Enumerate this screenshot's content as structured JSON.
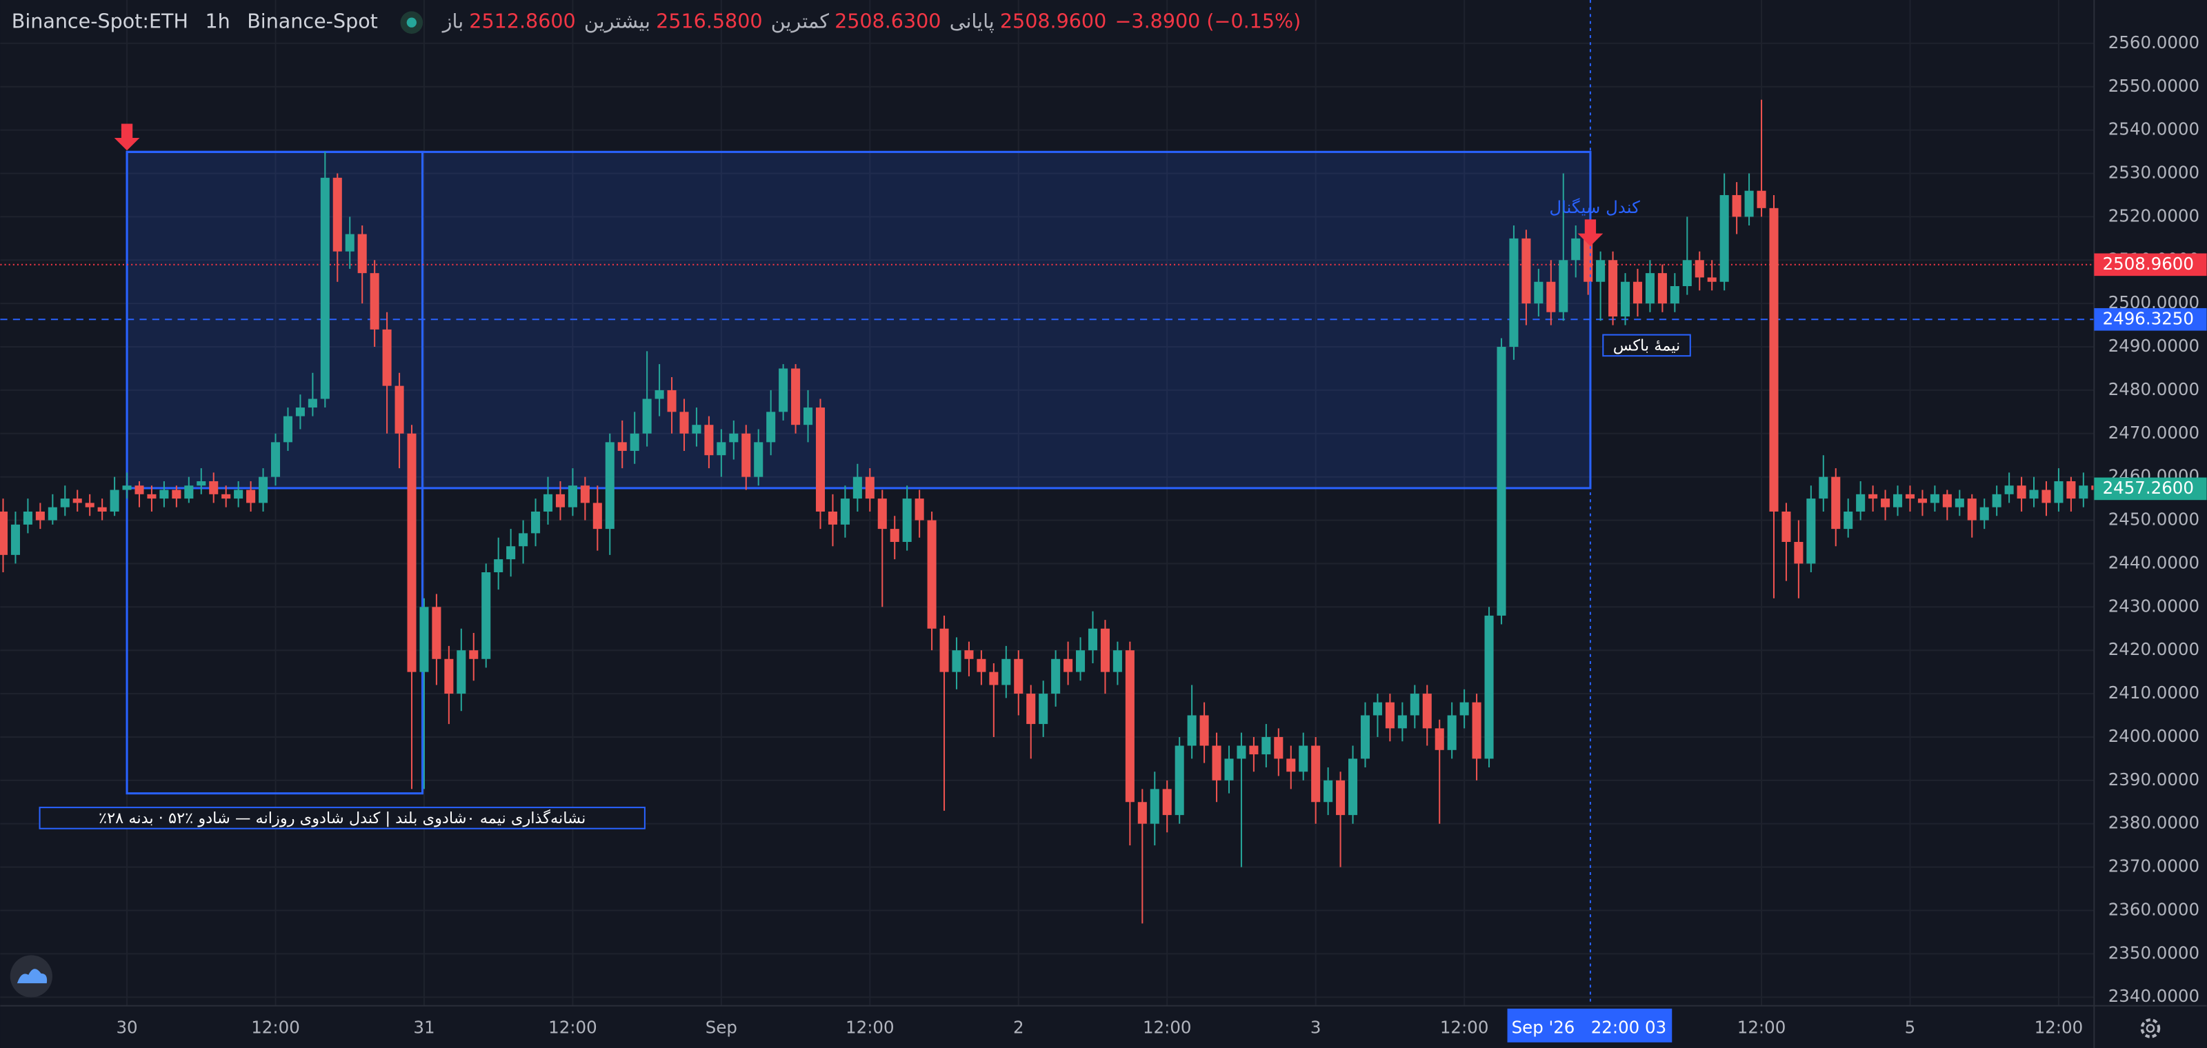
{
  "header": {
    "symbol": "Binance-Spot:ETH",
    "interval": "1h",
    "exchange": "Binance-Spot",
    "ohlc": [
      {
        "label": "باز",
        "value": "2512.8600"
      },
      {
        "label": "بیشترین",
        "value": "2516.5800"
      },
      {
        "label": "کمترین",
        "value": "2508.6300"
      },
      {
        "label": "پایانی",
        "value": "2508.9600"
      }
    ],
    "change": "−3.8900 (−0.15%)"
  },
  "annotations": {
    "signal": "کندل سیگنال",
    "half_box": "نیمهٔ باکس",
    "note": "٪نشانه‌گذاری نیمه ۰شادوی بلند | کندل شادوی روزانه — شادو ٪۵۲ · بدنه ۲۸",
    "crosshair_time": "Sep '26   22:00 03"
  },
  "chart_data": {
    "type": "candlestick",
    "up_color": "#26a69a",
    "down_color": "#ef5350",
    "grid": true,
    "ylim": [
      2338,
      2570
    ],
    "yticks": [
      {
        "value": 2340,
        "label": "2340.0000"
      },
      {
        "value": 2350,
        "label": "2350.0000"
      },
      {
        "value": 2360,
        "label": "2360.0000"
      },
      {
        "value": 2370,
        "label": "2370.0000"
      },
      {
        "value": 2380,
        "label": "2380.0000"
      },
      {
        "value": 2390,
        "label": "2390.0000"
      },
      {
        "value": 2400,
        "label": "2400.0000"
      },
      {
        "value": 2410,
        "label": "2410.0000"
      },
      {
        "value": 2420,
        "label": "2420.0000"
      },
      {
        "value": 2430,
        "label": "2430.0000"
      },
      {
        "value": 2440,
        "label": "2440.0000"
      },
      {
        "value": 2450,
        "label": "2450.0000"
      },
      {
        "value": 2460,
        "label": "2460.0000"
      },
      {
        "value": 2470,
        "label": "2470.0000"
      },
      {
        "value": 2480,
        "label": "2480.0000"
      },
      {
        "value": 2490,
        "label": "2490.0000"
      },
      {
        "value": 2500,
        "label": "2500.0000"
      },
      {
        "value": 2510,
        "label": "2510.0000"
      },
      {
        "value": 2520,
        "label": "2520.0000"
      },
      {
        "value": 2530,
        "label": "2530.0000"
      },
      {
        "value": 2540,
        "label": "2540.0000"
      },
      {
        "value": 2550,
        "label": "2550.0000"
      },
      {
        "value": 2560,
        "label": "2560.0000"
      }
    ],
    "xticks": [
      {
        "value": 10,
        "label": "30"
      },
      {
        "value": 22,
        "label": "12:00"
      },
      {
        "value": 34,
        "label": "31"
      },
      {
        "value": 46,
        "label": "12:00"
      },
      {
        "value": 58,
        "label": "Sep"
      },
      {
        "value": 70,
        "label": "12:00"
      },
      {
        "value": 82,
        "label": "2"
      },
      {
        "value": 94,
        "label": "12:00"
      },
      {
        "value": 106,
        "label": "3"
      },
      {
        "value": 118,
        "label": "12:00"
      },
      {
        "value": 142,
        "label": "12:00"
      },
      {
        "value": 154,
        "label": "5"
      },
      {
        "value": 166,
        "label": "12:00"
      }
    ],
    "price_lines": [
      {
        "value": 2508.96,
        "label": "2508.9600",
        "color": "#f23645",
        "style": "dotted"
      },
      {
        "value": 2496.325,
        "label": "2496.3250",
        "color": "#2962ff",
        "style": "dashed"
      },
      {
        "value": 2457.26,
        "label": "2457.2600",
        "color": "#22ab94",
        "style": "none"
      }
    ],
    "ohlc": [
      [
        2452,
        2455,
        2438,
        2442
      ],
      [
        2442,
        2452,
        2440,
        2449
      ],
      [
        2449,
        2455,
        2447,
        2452
      ],
      [
        2452,
        2454,
        2448,
        2450
      ],
      [
        2450,
        2456,
        2449,
        2453
      ],
      [
        2453,
        2458,
        2451,
        2455
      ],
      [
        2455,
        2457,
        2452,
        2454
      ],
      [
        2454,
        2456,
        2451,
        2453
      ],
      [
        2453,
        2455,
        2450,
        2452
      ],
      [
        2452,
        2460,
        2451,
        2457
      ],
      [
        2457,
        2461,
        2455,
        2458
      ],
      [
        2458,
        2459,
        2453,
        2456
      ],
      [
        2456,
        2458,
        2452,
        2455
      ],
      [
        2455,
        2459,
        2453,
        2457
      ],
      [
        2457,
        2458,
        2453,
        2455
      ],
      [
        2455,
        2460,
        2454,
        2458
      ],
      [
        2458,
        2462,
        2456,
        2459
      ],
      [
        2459,
        2461,
        2454,
        2456
      ],
      [
        2456,
        2458,
        2453,
        2455
      ],
      [
        2455,
        2459,
        2453,
        2457
      ],
      [
        2457,
        2459,
        2452,
        2454
      ],
      [
        2454,
        2462,
        2452,
        2460
      ],
      [
        2460,
        2470,
        2458,
        2468
      ],
      [
        2468,
        2476,
        2466,
        2474
      ],
      [
        2474,
        2479,
        2471,
        2476
      ],
      [
        2476,
        2484,
        2474,
        2478
      ],
      [
        2478,
        2535,
        2476,
        2529
      ],
      [
        2529,
        2530,
        2505,
        2512
      ],
      [
        2512,
        2520,
        2508,
        2516
      ],
      [
        2516,
        2518,
        2500,
        2507
      ],
      [
        2507,
        2510,
        2490,
        2494
      ],
      [
        2494,
        2498,
        2470,
        2481
      ],
      [
        2481,
        2484,
        2462,
        2470
      ],
      [
        2470,
        2472,
        2388,
        2415
      ],
      [
        2415,
        2432,
        2388,
        2430
      ],
      [
        2430,
        2433,
        2412,
        2418
      ],
      [
        2418,
        2421,
        2403,
        2410
      ],
      [
        2410,
        2425,
        2406,
        2420
      ],
      [
        2420,
        2424,
        2413,
        2418
      ],
      [
        2418,
        2440,
        2416,
        2438
      ],
      [
        2438,
        2446,
        2434,
        2441
      ],
      [
        2441,
        2448,
        2437,
        2444
      ],
      [
        2444,
        2450,
        2440,
        2447
      ],
      [
        2447,
        2455,
        2444,
        2452
      ],
      [
        2452,
        2460,
        2449,
        2456
      ],
      [
        2456,
        2459,
        2450,
        2453
      ],
      [
        2453,
        2462,
        2451,
        2458
      ],
      [
        2458,
        2460,
        2450,
        2454
      ],
      [
        2454,
        2458,
        2443,
        2448
      ],
      [
        2448,
        2470,
        2442,
        2468
      ],
      [
        2468,
        2473,
        2462,
        2466
      ],
      [
        2466,
        2475,
        2463,
        2470
      ],
      [
        2470,
        2489,
        2467,
        2478
      ],
      [
        2478,
        2486,
        2474,
        2480
      ],
      [
        2480,
        2483,
        2470,
        2475
      ],
      [
        2475,
        2478,
        2466,
        2470
      ],
      [
        2470,
        2476,
        2467,
        2472
      ],
      [
        2472,
        2474,
        2462,
        2465
      ],
      [
        2465,
        2471,
        2460,
        2468
      ],
      [
        2468,
        2473,
        2464,
        2470
      ],
      [
        2470,
        2472,
        2457,
        2460
      ],
      [
        2460,
        2471,
        2458,
        2468
      ],
      [
        2468,
        2480,
        2465,
        2475
      ],
      [
        2475,
        2486,
        2473,
        2485
      ],
      [
        2485,
        2486,
        2470,
        2472
      ],
      [
        2472,
        2480,
        2468,
        2476
      ],
      [
        2476,
        2478,
        2448,
        2452
      ],
      [
        2452,
        2456,
        2444,
        2449
      ],
      [
        2449,
        2458,
        2446,
        2455
      ],
      [
        2455,
        2463,
        2452,
        2460
      ],
      [
        2460,
        2462,
        2452,
        2455
      ],
      [
        2455,
        2457,
        2430,
        2448
      ],
      [
        2448,
        2451,
        2441,
        2445
      ],
      [
        2445,
        2458,
        2443,
        2455
      ],
      [
        2455,
        2457,
        2446,
        2450
      ],
      [
        2450,
        2452,
        2420,
        2425
      ],
      [
        2425,
        2428,
        2383,
        2415
      ],
      [
        2415,
        2423,
        2411,
        2420
      ],
      [
        2420,
        2422,
        2414,
        2418
      ],
      [
        2418,
        2420,
        2412,
        2415
      ],
      [
        2415,
        2417,
        2400,
        2412
      ],
      [
        2412,
        2421,
        2409,
        2418
      ],
      [
        2418,
        2420,
        2405,
        2410
      ],
      [
        2410,
        2412,
        2395,
        2403
      ],
      [
        2403,
        2413,
        2400,
        2410
      ],
      [
        2410,
        2420,
        2407,
        2418
      ],
      [
        2418,
        2422,
        2412,
        2415
      ],
      [
        2415,
        2423,
        2413,
        2420
      ],
      [
        2420,
        2429,
        2417,
        2425
      ],
      [
        2425,
        2427,
        2410,
        2415
      ],
      [
        2415,
        2422,
        2412,
        2420
      ],
      [
        2420,
        2422,
        2375,
        2385
      ],
      [
        2385,
        2388,
        2357,
        2380
      ],
      [
        2380,
        2392,
        2375,
        2388
      ],
      [
        2388,
        2390,
        2378,
        2382
      ],
      [
        2382,
        2400,
        2380,
        2398
      ],
      [
        2398,
        2412,
        2395,
        2405
      ],
      [
        2405,
        2408,
        2394,
        2398
      ],
      [
        2398,
        2401,
        2385,
        2390
      ],
      [
        2390,
        2398,
        2387,
        2395
      ],
      [
        2395,
        2401,
        2370,
        2398
      ],
      [
        2398,
        2400,
        2392,
        2396
      ],
      [
        2396,
        2403,
        2393,
        2400
      ],
      [
        2400,
        2402,
        2391,
        2395
      ],
      [
        2395,
        2398,
        2388,
        2392
      ],
      [
        2392,
        2401,
        2390,
        2398
      ],
      [
        2398,
        2400,
        2380,
        2385
      ],
      [
        2385,
        2393,
        2382,
        2390
      ],
      [
        2390,
        2392,
        2370,
        2382
      ],
      [
        2382,
        2398,
        2380,
        2395
      ],
      [
        2395,
        2408,
        2393,
        2405
      ],
      [
        2405,
        2410,
        2400,
        2408
      ],
      [
        2408,
        2410,
        2399,
        2402
      ],
      [
        2402,
        2408,
        2399,
        2405
      ],
      [
        2405,
        2412,
        2402,
        2410
      ],
      [
        2410,
        2412,
        2398,
        2402
      ],
      [
        2402,
        2404,
        2380,
        2397
      ],
      [
        2397,
        2408,
        2395,
        2405
      ],
      [
        2405,
        2411,
        2402,
        2408
      ],
      [
        2408,
        2410,
        2390,
        2395
      ],
      [
        2395,
        2430,
        2393,
        2428
      ],
      [
        2428,
        2492,
        2426,
        2490
      ],
      [
        2490,
        2518,
        2487,
        2515
      ],
      [
        2515,
        2517,
        2495,
        2500
      ],
      [
        2500,
        2508,
        2497,
        2505
      ],
      [
        2505,
        2510,
        2495,
        2498
      ],
      [
        2498,
        2530,
        2496,
        2510
      ],
      [
        2510,
        2518,
        2506,
        2515
      ],
      [
        2515,
        2516,
        2502,
        2505
      ],
      [
        2505,
        2512,
        2496,
        2510
      ],
      [
        2510,
        2512,
        2495,
        2497
      ],
      [
        2497,
        2507,
        2495,
        2505
      ],
      [
        2505,
        2508,
        2497,
        2500
      ],
      [
        2500,
        2510,
        2498,
        2507
      ],
      [
        2507,
        2509,
        2498,
        2500
      ],
      [
        2500,
        2507,
        2498,
        2504
      ],
      [
        2504,
        2520,
        2502,
        2510
      ],
      [
        2510,
        2512,
        2503,
        2506
      ],
      [
        2506,
        2510,
        2503,
        2505
      ],
      [
        2505,
        2530,
        2503,
        2525
      ],
      [
        2525,
        2528,
        2516,
        2520
      ],
      [
        2520,
        2530,
        2518,
        2526
      ],
      [
        2526,
        2547,
        2520,
        2522
      ],
      [
        2522,
        2525,
        2432,
        2452
      ],
      [
        2452,
        2454,
        2436,
        2445
      ],
      [
        2445,
        2450,
        2432,
        2440
      ],
      [
        2440,
        2458,
        2438,
        2455
      ],
      [
        2455,
        2465,
        2452,
        2460
      ],
      [
        2460,
        2462,
        2444,
        2448
      ],
      [
        2448,
        2455,
        2446,
        2452
      ],
      [
        2452,
        2459,
        2450,
        2456
      ],
      [
        2456,
        2458,
        2452,
        2455
      ],
      [
        2455,
        2457,
        2450,
        2453
      ],
      [
        2453,
        2458,
        2451,
        2456
      ],
      [
        2456,
        2458,
        2452,
        2455
      ],
      [
        2455,
        2457,
        2451,
        2454
      ],
      [
        2454,
        2458,
        2452,
        2456
      ],
      [
        2456,
        2457,
        2450,
        2453
      ],
      [
        2453,
        2457,
        2451,
        2455
      ],
      [
        2455,
        2456,
        2446,
        2450
      ],
      [
        2450,
        2455,
        2448,
        2453
      ],
      [
        2453,
        2458,
        2451,
        2456
      ],
      [
        2456,
        2461,
        2454,
        2458
      ],
      [
        2458,
        2460,
        2452,
        2455
      ],
      [
        2455,
        2460,
        2453,
        2457
      ],
      [
        2457,
        2459,
        2451,
        2454
      ],
      [
        2454,
        2462,
        2452,
        2459
      ],
      [
        2459,
        2460,
        2452,
        2455
      ],
      [
        2455,
        2461,
        2453,
        2458
      ],
      [
        2458,
        2460,
        2454,
        2457
      ]
    ]
  }
}
